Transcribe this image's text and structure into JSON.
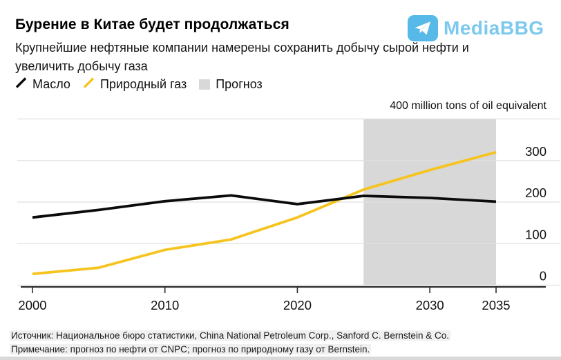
{
  "watermark": {
    "text": "MediaBBG",
    "badge_color": "#56b9e7",
    "text_color": "#7cc9ee"
  },
  "chart_data": {
    "type": "line",
    "title": "Бурение в Китае будет продолжаться",
    "subtitle": "Крупнейшие нефтяные компании намерены сохранить добычу сырой нефти и увеличить добычу газа",
    "unit_label": "400 million tons of oil equivalent",
    "x": [
      2000,
      2005,
      2010,
      2015,
      2020,
      2025,
      2030,
      2035
    ],
    "series": [
      {
        "name": "Масло",
        "color": "#0b0b0b",
        "values": [
          163,
          181,
          202,
          216,
          195,
          215,
          210,
          201
        ]
      },
      {
        "name": "Природный газ",
        "color": "#f6c41f",
        "values": [
          27,
          42,
          85,
          110,
          163,
          230,
          277,
          320
        ]
      }
    ],
    "forecast_band": {
      "label": "Прогноз",
      "start": 2025,
      "end": 2035,
      "color": "#d8d8d8"
    },
    "ylim": [
      0,
      400
    ],
    "yticks": [
      0,
      100,
      200,
      300
    ],
    "xticks": [
      2000,
      2010,
      2020,
      2030,
      2035
    ],
    "grid": true,
    "legend_position": "top-left",
    "gridline_color": "#e0e0e0",
    "axis_color": "#2b2b2b"
  },
  "footer": {
    "source": "Источник: Национальное бюро статистики, China National Petroleum Corp., Sanford C. Bernstein & Co.",
    "note": "Примечание: прогноз по нефти от CNPC; прогноз по природному газу от Bernstein."
  }
}
